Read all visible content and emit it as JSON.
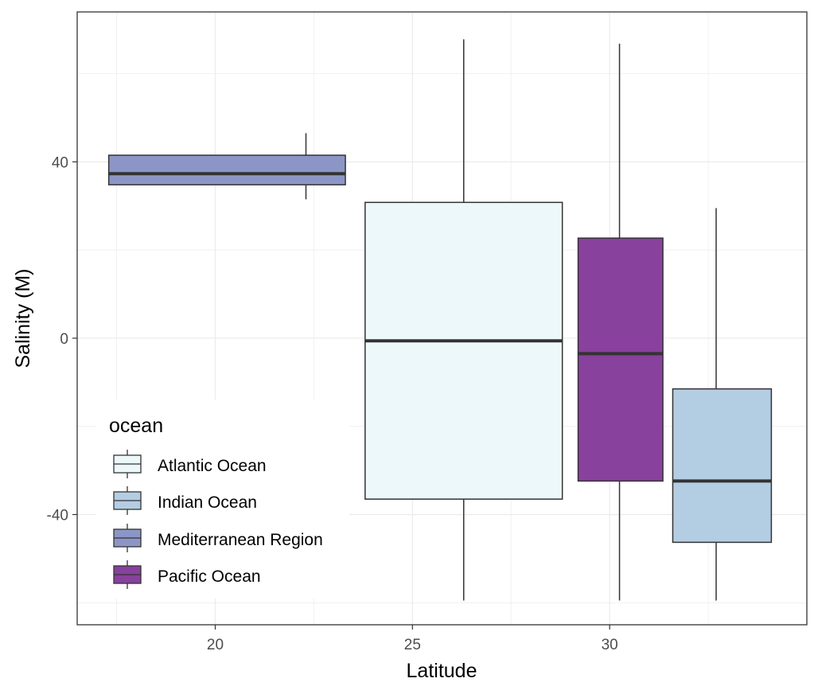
{
  "chart_data": {
    "type": "boxplot",
    "title": "",
    "xlabel": "Latitude",
    "ylabel": "Salinity (M)",
    "xlim": [
      16.5,
      35
    ],
    "ylim": [
      -65,
      74
    ],
    "x_ticks": [
      {
        "value": 20,
        "label": "20"
      },
      {
        "value": 25,
        "label": "25"
      },
      {
        "value": 30,
        "label": "30"
      }
    ],
    "y_ticks": [
      {
        "value": 40,
        "label": "40"
      },
      {
        "value": 0,
        "label": "0"
      },
      {
        "value": -40,
        "label": "-40"
      }
    ],
    "grid": true,
    "legend": {
      "title": "ocean",
      "position": "bottom-left (inside)",
      "entries": [
        {
          "name": "Atlantic Ocean",
          "color": "#edf8fb"
        },
        {
          "name": "Indian Ocean",
          "color": "#b3cde3"
        },
        {
          "name": "Mediterranean Region",
          "color": "#8c96c6"
        },
        {
          "name": "Pacific Ocean",
          "color": "#88419d"
        }
      ]
    },
    "series": [
      {
        "name": "Mediterranean Region",
        "color": "#8c96c6",
        "x_min": 17.3,
        "x_max": 23.3,
        "whisker_x": 22.3,
        "whisker_low": 31.5,
        "q1": 34.8,
        "median": 37.3,
        "q3": 41.5,
        "whisker_high": 46.5
      },
      {
        "name": "Atlantic Ocean",
        "color": "#edf8fb",
        "x_min": 23.8,
        "x_max": 28.8,
        "whisker_x": 26.3,
        "whisker_low": -59.5,
        "q1": -36.5,
        "median": -0.6,
        "q3": 30.8,
        "whisker_high": 67.8
      },
      {
        "name": "Pacific Ocean",
        "color": "#88419d",
        "x_min": 29.2,
        "x_max": 31.35,
        "whisker_x": 30.25,
        "whisker_low": -59.5,
        "q1": -32.4,
        "median": -3.5,
        "q3": 22.7,
        "whisker_high": 66.8
      },
      {
        "name": "Indian Ocean",
        "color": "#b3cde3",
        "x_min": 31.6,
        "x_max": 34.1,
        "whisker_x": 32.7,
        "whisker_low": -59.5,
        "q1": -46.3,
        "median": -32.4,
        "q3": -11.5,
        "whisker_high": 29.5
      }
    ]
  }
}
